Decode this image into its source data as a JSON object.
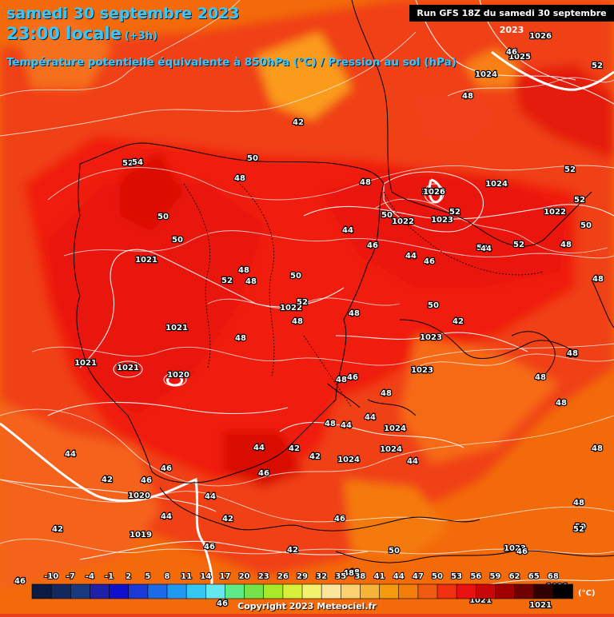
{
  "header": {
    "date_line": "samedi 30 septembre 2023",
    "time_line": "23:00 locale",
    "offset": "(+3h)",
    "parameter": "Température potentielle équivalente à 850hPa (°C) / Pression au sol (hPa)"
  },
  "run_info": "Run GFS 18Z du samedi 30 septembre 2023",
  "copyright": "Copyright 2023 Meteociel.fr",
  "colorbar": {
    "ticks": [
      "-10",
      "-7",
      "-4",
      "-1",
      "2",
      "5",
      "8",
      "11",
      "14",
      "17",
      "20",
      "23",
      "26",
      "29",
      "32",
      "35",
      "38",
      "41",
      "44",
      "47",
      "50",
      "53",
      "56",
      "59",
      "62",
      "65",
      "68"
    ],
    "colors": [
      "#0d1a44",
      "#14285e",
      "#1a3a80",
      "#1f1fa8",
      "#1010cc",
      "#1a3ad8",
      "#1a6ae8",
      "#1e99f0",
      "#35c6f3",
      "#63e8f0",
      "#5fea88",
      "#76e24a",
      "#a6ea2a",
      "#d9f03a",
      "#f2f26e",
      "#fbe59a",
      "#fbd070",
      "#f7b238",
      "#f59a10",
      "#f47c08",
      "#f05a10",
      "#f03010",
      "#e81010",
      "#c80808",
      "#a00000",
      "#700000",
      "#300000",
      "#000000"
    ],
    "unit": "(°C)"
  },
  "map": {
    "pressure_labels": [
      "1026",
      "1025",
      "1024",
      "1020",
      "1021",
      "1021",
      "1021",
      "1021",
      "1020",
      "1022",
      "1023",
      "1022",
      "1023",
      "1024",
      "1022",
      "1026",
      "1023",
      "1024",
      "1024",
      "1024",
      "1019",
      "1023",
      "1020",
      "1021",
      "1021",
      "1021",
      "1023",
      "1023"
    ],
    "thetae_labels": [
      "52",
      "54",
      "50",
      "48",
      "50",
      "50",
      "52",
      "48",
      "48",
      "48",
      "50",
      "52",
      "48",
      "44",
      "46",
      "50",
      "46",
      "52",
      "50",
      "52",
      "48",
      "52",
      "52",
      "48",
      "48",
      "48",
      "44",
      "46",
      "44",
      "48",
      "48",
      "50",
      "48",
      "46",
      "46",
      "44",
      "44",
      "42",
      "44",
      "42",
      "46",
      "46",
      "44",
      "42",
      "44",
      "46",
      "46",
      "42",
      "48",
      "48",
      "48",
      "50",
      "42",
      "44",
      "46",
      "48",
      "42",
      "42",
      "44",
      "48",
      "50",
      "52",
      "52",
      "50",
      "48",
      "48",
      "48",
      "46",
      "46",
      "48",
      "42"
    ]
  }
}
